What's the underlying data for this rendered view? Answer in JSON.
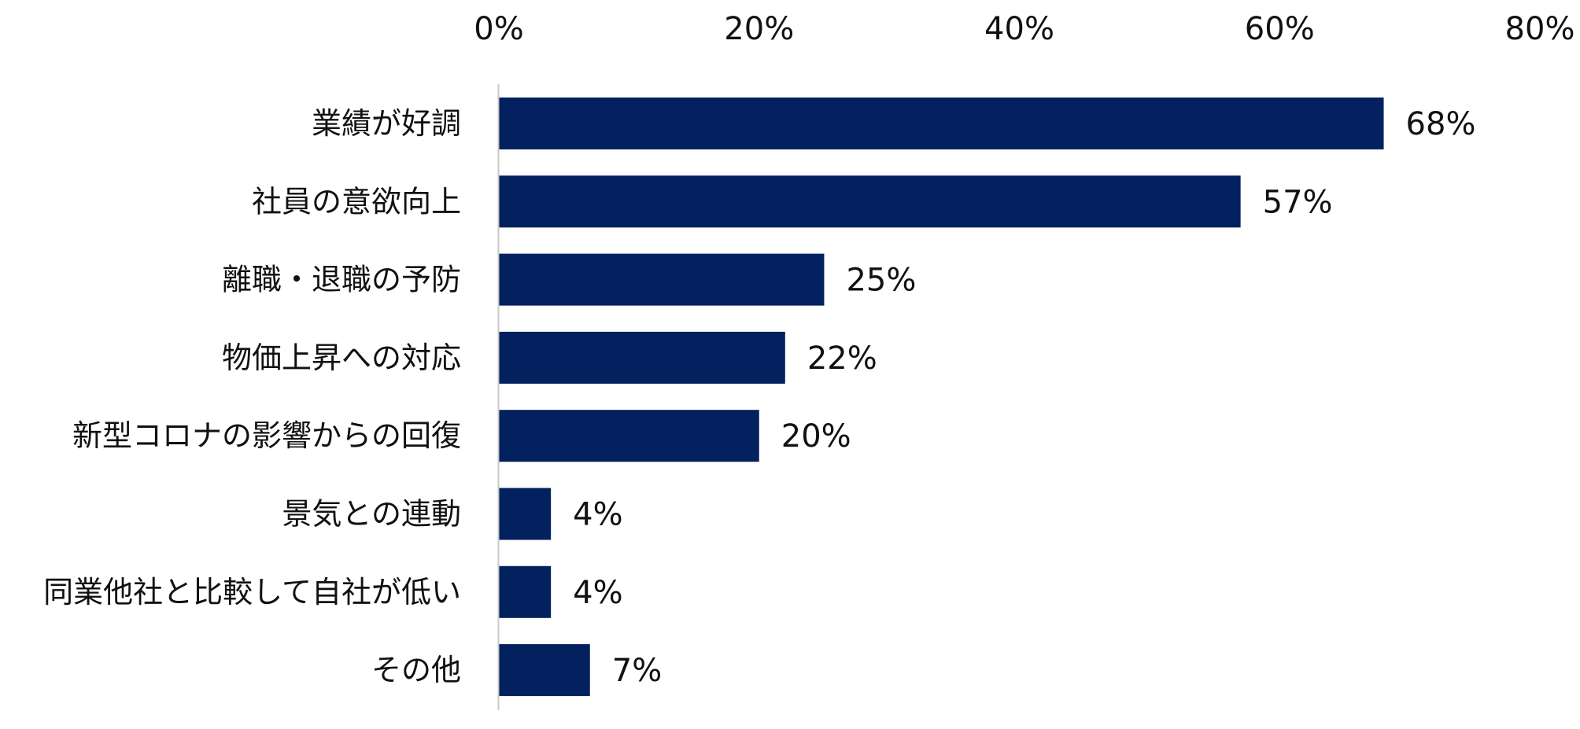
{
  "chart_data": {
    "type": "bar",
    "orientation": "horizontal",
    "title": "",
    "xlabel": "",
    "ylabel": "",
    "categories": [
      "業績が好調",
      "社員の意欲向上",
      "離職・退職の予防",
      "物価上昇への対応",
      "新型コロナの影響からの回復",
      "景気との連動",
      "同業他社と比較して自社が低い",
      "その他"
    ],
    "values": [
      68,
      57,
      25,
      22,
      20,
      4,
      4,
      7
    ],
    "value_labels": [
      "68%",
      "57%",
      "25%",
      "22%",
      "20%",
      "4%",
      "4%",
      "7%"
    ],
    "xlim": [
      0,
      80
    ],
    "x_ticks": [
      0,
      20,
      40,
      60,
      80
    ],
    "x_tick_labels": [
      "0%",
      "20%",
      "40%",
      "60%",
      "80%"
    ],
    "x_axis_position": "top",
    "grid": false,
    "legend": "none",
    "bar_color": "#03215E",
    "axis_line_color": "#C9C9C9",
    "text_color": "#111111"
  }
}
